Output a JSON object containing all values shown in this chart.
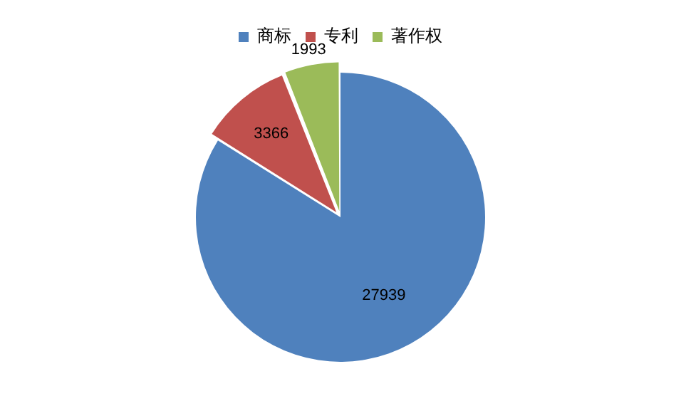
{
  "chart_data": {
    "type": "pie",
    "categories": [
      "商标",
      "专利",
      "著作权"
    ],
    "values": [
      27939,
      3366,
      1993
    ],
    "colors": [
      "#4f81bd",
      "#c0504d",
      "#9bbb59"
    ],
    "legend": "top",
    "data_labels": true
  }
}
